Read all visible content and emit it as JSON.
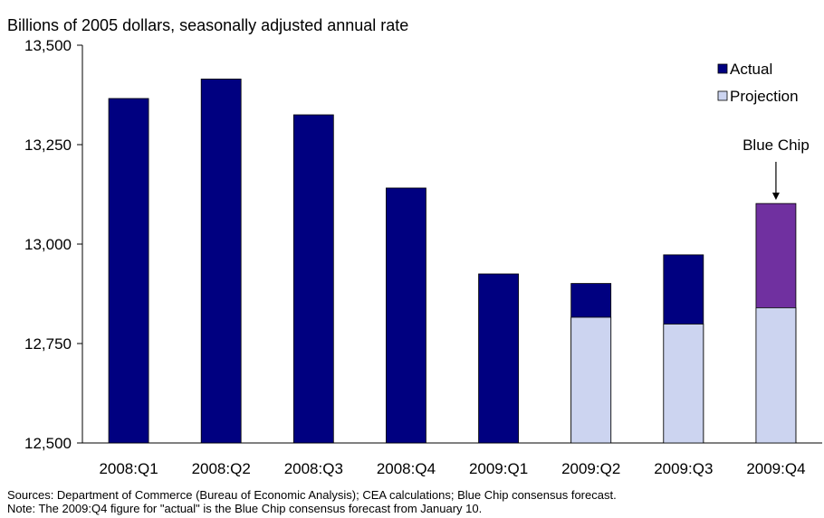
{
  "chart_data": {
    "type": "bar",
    "title": "",
    "ylabel": "Billions of 2005 dollars, seasonally adjusted annual rate",
    "xlabel": "",
    "categories": [
      "2008:Q1",
      "2008:Q2",
      "2008:Q3",
      "2008:Q4",
      "2009:Q1",
      "2009:Q2",
      "2009:Q3",
      "2009:Q4"
    ],
    "ylim": [
      12500,
      13500
    ],
    "yticks": [
      12500,
      12750,
      13000,
      13250,
      13500
    ],
    "ytick_labels": [
      "12,500",
      "12,750",
      "13,000",
      "13,250",
      "13,500"
    ],
    "series": [
      {
        "name": "Actual",
        "color": "#000080",
        "values": [
          13366,
          13415,
          13325,
          13141,
          12925,
          12901,
          12973,
          13102
        ]
      },
      {
        "name": "Projection",
        "color": "#ccd4f0",
        "values": [
          null,
          null,
          null,
          null,
          null,
          12816,
          12799,
          12840
        ]
      }
    ],
    "highlight": {
      "category": "2009:Q4",
      "color": "#7030a0"
    },
    "legend": {
      "placement": "top-right",
      "entries": [
        "Actual",
        "Projection"
      ]
    },
    "annotations": [
      {
        "text": "Blue Chip",
        "target": "2009:Q4"
      }
    ],
    "grid": false
  },
  "footer": {
    "sources": "Sources:  Department of Commerce (Bureau of Economic Analysis); CEA calculations; Blue Chip consensus forecast.",
    "note": "Note:  The 2009:Q4 figure for \"actual\" is the Blue Chip consensus forecast from January 10."
  }
}
